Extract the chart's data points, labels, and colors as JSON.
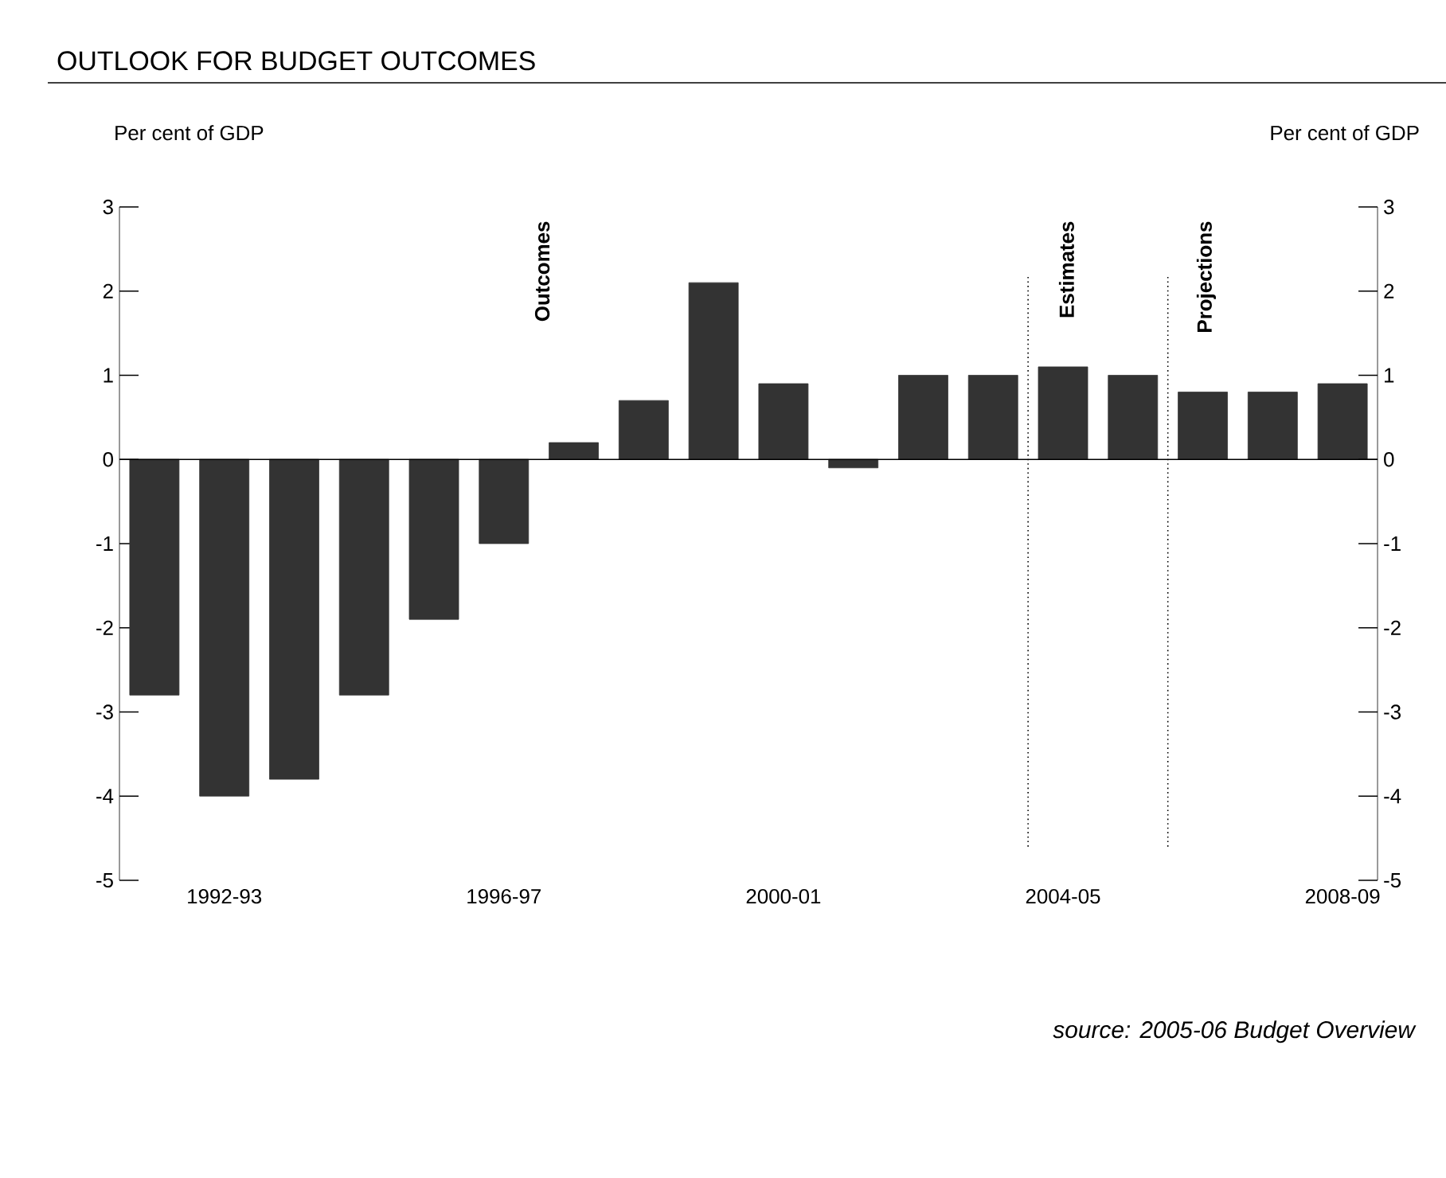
{
  "chart_data": {
    "type": "bar",
    "title": "OUTLOOK FOR BUDGET OUTCOMES",
    "ylabel": "Per cent of GDP",
    "y2label": "Per cent of GDP",
    "categories": [
      null,
      "1992-93",
      null,
      null,
      null,
      "1996-97",
      null,
      null,
      null,
      "2000-01",
      null,
      null,
      null,
      "2004-05",
      null,
      null,
      null,
      "2008-09"
    ],
    "values": [
      -2.8,
      -4.0,
      -3.8,
      -2.8,
      -1.9,
      -1.0,
      0.2,
      0.7,
      2.1,
      0.9,
      -0.1,
      1.0,
      1.0,
      1.1,
      1.0,
      0.8,
      0.8,
      0.9
    ],
    "color": "#333333",
    "ylim": [
      -5,
      3
    ],
    "yticks": [
      -5,
      -4,
      -3,
      -2,
      -1,
      0,
      1,
      2,
      3
    ],
    "y2lim": [
      -5,
      3
    ],
    "y2ticks": [
      -5,
      -4,
      -3,
      -2,
      -1,
      0,
      1,
      2,
      3
    ],
    "annotations": [
      "Outcomes",
      "source: 2005-06 Budget Overview",
      "Estimates",
      "Projections"
    ],
    "grid": false
  }
}
